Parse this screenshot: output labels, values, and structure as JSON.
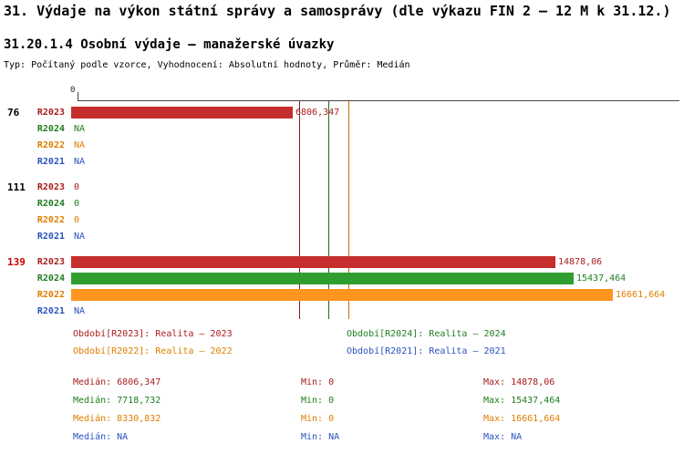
{
  "header": {
    "title": "31. Výdaje na výkon státní správy a samosprávy (dle výkazu FIN 2 – 12 M k 31.12.)",
    "subtitle": "31.20.1.4 Osobní výdaje – manažerské úvazky",
    "meta": "Typ: Počítaný podle vzorce, Vyhodnocení: Absolutní hodnoty, Průměr: Medián"
  },
  "chart_data": {
    "type": "bar",
    "orientation": "horizontal",
    "axis": {
      "tick_label": "0",
      "xmin": 0,
      "xmax_units": 18500,
      "grid": false
    },
    "series_order": [
      "R2023",
      "R2024",
      "R2022",
      "R2021"
    ],
    "series": {
      "R2023": {
        "text": "#aa1c1c",
        "bar": "#c62d2d",
        "line": "#8f1616"
      },
      "R2024": {
        "text": "#1f7d1f",
        "bar": "#2f9e2f",
        "line": "#1b6e1b"
      },
      "R2022": {
        "text": "#e07d00",
        "bar": "#ff941f",
        "line": "#c96f00"
      },
      "R2021": {
        "text": "#2b52bf",
        "bar": "#3a66cc",
        "line": "#2b52bf"
      }
    },
    "groups": [
      {
        "label": "76",
        "label_color": "#000000",
        "bars": [
          {
            "series": "R2023",
            "value": 6806.347,
            "display": "6806,347"
          },
          {
            "series": "R2024",
            "value": null,
            "display": "NA"
          },
          {
            "series": "R2022",
            "value": null,
            "display": "NA"
          },
          {
            "series": "R2021",
            "value": null,
            "display": "NA"
          }
        ]
      },
      {
        "label": "111",
        "label_color": "#000000",
        "bars": [
          {
            "series": "R2023",
            "value": 0,
            "display": "0"
          },
          {
            "series": "R2024",
            "value": 0,
            "display": "0"
          },
          {
            "series": "R2022",
            "value": 0,
            "display": "0"
          },
          {
            "series": "R2021",
            "value": null,
            "display": "NA"
          }
        ]
      },
      {
        "label": "139",
        "label_color": "#cc0000",
        "bars": [
          {
            "series": "R2023",
            "value": 14878.06,
            "display": "14878,06"
          },
          {
            "series": "R2024",
            "value": 15437.464,
            "display": "15437,464"
          },
          {
            "series": "R2022",
            "value": 16661.664,
            "display": "16661,664"
          },
          {
            "series": "R2021",
            "value": null,
            "display": "NA"
          }
        ]
      }
    ],
    "median_lines": [
      {
        "series": "R2023",
        "value": 6806.347
      },
      {
        "series": "R2024",
        "value": 7718.732
      },
      {
        "series": "R2022",
        "value": 8330.832
      }
    ]
  },
  "legend": {
    "items": [
      {
        "series": "R2023",
        "text": "Období[R2023]: Realita – 2023"
      },
      {
        "series": "R2024",
        "text": "Období[R2024]: Realita – 2024"
      },
      {
        "series": "R2022",
        "text": "Období[R2022]: Realita – 2022"
      },
      {
        "series": "R2021",
        "text": "Období[R2021]: Realita – 2021"
      }
    ]
  },
  "stats": {
    "rows": [
      {
        "series": "R2023",
        "median_text": "Medián: 6806,347",
        "min_text": "Min: 0",
        "max_text": "Max: 14878,06"
      },
      {
        "series": "R2024",
        "median_text": "Medián: 7718,732",
        "min_text": "Min: 0",
        "max_text": "Max: 15437,464"
      },
      {
        "series": "R2022",
        "median_text": "Medián: 8330,832",
        "min_text": "Min: 0",
        "max_text": "Max: 16661,664"
      },
      {
        "series": "R2021",
        "median_text": "Medián: NA",
        "min_text": "Min: NA",
        "max_text": "Max: NA"
      }
    ]
  }
}
